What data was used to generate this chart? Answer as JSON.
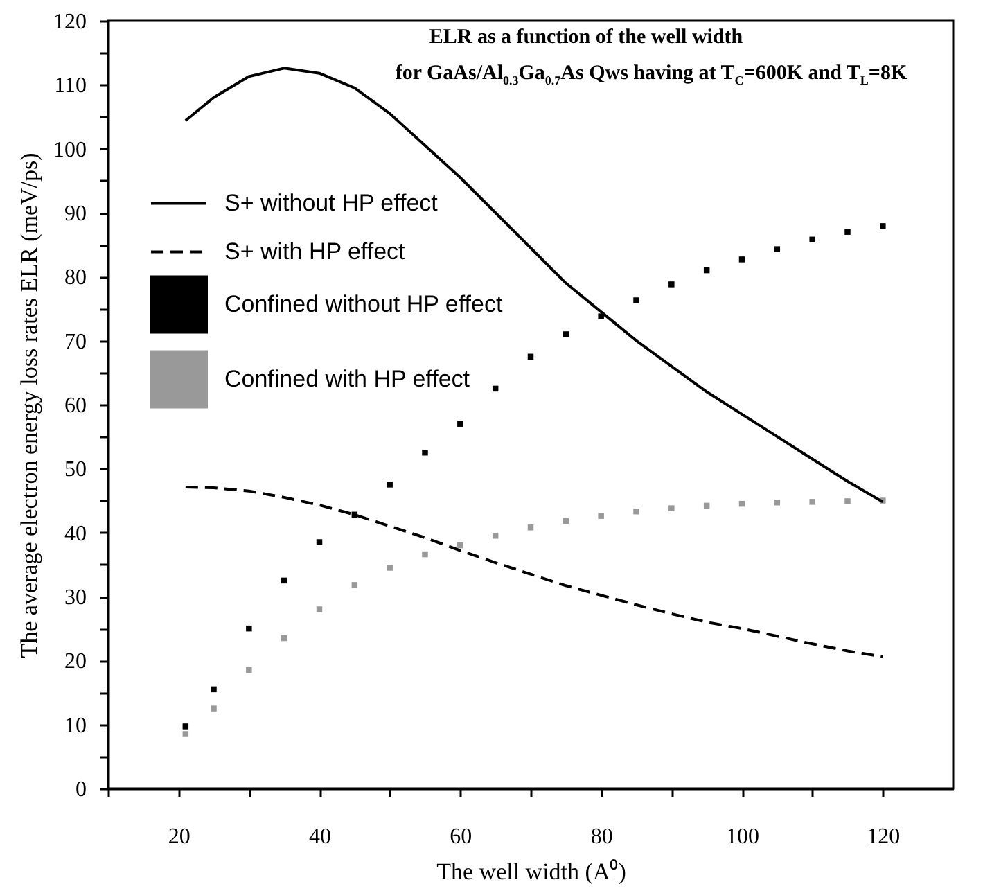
{
  "chart_data": {
    "type": "line",
    "title": "ELR as a function of the well width",
    "subtitle": "for GaAs/Al$_{0.3}$Ga$_{0.7}$As Qws having at T$_{C}$=600K and T$_{L}$=8K",
    "xlabel": "The well width (A⁰)",
    "ylabel": "The average electron energy loss rates ELR  (meV/ps)",
    "x": [
      21,
      25,
      30,
      35,
      40,
      45,
      50,
      55,
      60,
      65,
      70,
      75,
      80,
      85,
      90,
      95,
      100,
      105,
      110,
      115,
      120
    ],
    "series": [
      {
        "name": "S+ without HP effect",
        "type": "line",
        "line_style": "solid",
        "color": "#000000",
        "values": [
          104.4,
          108,
          111.3,
          112.6,
          111.8,
          109.5,
          105.5,
          100.5,
          95.5,
          90,
          84.5,
          79,
          74.5,
          70,
          66,
          62,
          58.5,
          55,
          51.5,
          48,
          44.8
        ]
      },
      {
        "name": "S+ with HP effect",
        "type": "line",
        "line_style": "dashed",
        "color": "#000000",
        "values": [
          47.1,
          47,
          46.5,
          45.5,
          44.3,
          42.8,
          41,
          39.2,
          37.2,
          35.3,
          33.5,
          31.7,
          30.2,
          28.7,
          27.3,
          26,
          25,
          23.8,
          22.6,
          21.5,
          20.6
        ]
      },
      {
        "name": "Confined without HP effect",
        "type": "scatter",
        "marker": "square",
        "color": "#000000",
        "values": [
          9.7,
          15.5,
          25,
          32.5,
          38.5,
          42.8,
          47.5,
          52.5,
          57,
          62.5,
          67.5,
          71,
          73.8,
          76.3,
          78.8,
          81,
          82.7,
          84.3,
          85.8,
          87,
          87.9
        ]
      },
      {
        "name": "Confined with HP effect",
        "type": "scatter",
        "marker": "square",
        "color": "#999999",
        "values": [
          8.5,
          12.5,
          18.5,
          23.5,
          28,
          31.8,
          34.5,
          36.6,
          38,
          39.5,
          40.8,
          41.8,
          42.6,
          43.3,
          43.8,
          44.2,
          44.5,
          44.7,
          44.8,
          44.9,
          45
        ]
      }
    ],
    "xlim": [
      10,
      130
    ],
    "xticks": [
      {
        "value": 10,
        "label": null
      },
      20,
      {
        "value": 30,
        "label": null
      },
      40,
      {
        "value": 50,
        "label": null
      },
      60,
      {
        "value": 70,
        "label": null
      },
      80,
      {
        "value": 90,
        "label": null
      },
      100,
      {
        "value": 110,
        "label": null
      },
      120
    ],
    "ylim": [
      0,
      120
    ],
    "yticks": [
      0,
      {
        "value": 5,
        "label": null
      },
      10,
      {
        "value": 15,
        "label": null
      },
      20,
      {
        "value": 25,
        "label": null
      },
      30,
      {
        "value": 35,
        "label": null
      },
      40,
      {
        "value": 45,
        "label": null
      },
      50,
      {
        "value": 55,
        "label": null
      },
      60,
      {
        "value": 65,
        "label": null
      },
      70,
      {
        "value": 75,
        "label": null
      },
      80,
      {
        "value": 85,
        "label": null
      },
      90,
      {
        "value": 95,
        "label": null
      },
      100,
      {
        "value": 105,
        "label": null
      },
      110,
      {
        "value": 115,
        "label": null
      },
      120
    ],
    "grid": false,
    "legend": "left"
  }
}
